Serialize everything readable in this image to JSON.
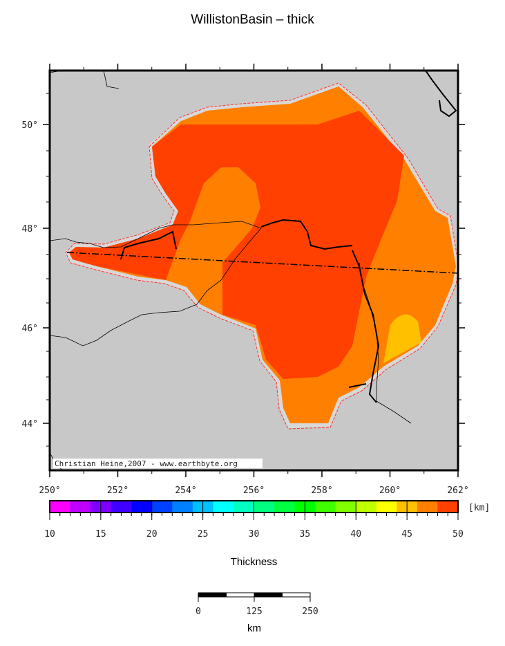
{
  "title": "WillistonBasin – thick",
  "map": {
    "credit": "Christian Heine,2007 - www.earthbyte.org",
    "lon_ticks": [
      "250°",
      "252°",
      "254°",
      "256°",
      "258°",
      "260°",
      "262°"
    ],
    "lat_ticks": [
      "50°",
      "48°",
      "46°",
      "44°"
    ],
    "land_color": "#c8c8c8",
    "outline_color": "#ff3030"
  },
  "colorbar": {
    "unit": "[km]",
    "label": "Thickness",
    "ticks": [
      "10",
      "15",
      "20",
      "25",
      "30",
      "35",
      "40",
      "45",
      "50"
    ],
    "colors": [
      "#ff00ff",
      "#bf00ff",
      "#8000ff",
      "#4000ff",
      "#0000ff",
      "#0040ff",
      "#0080ff",
      "#00c0ff",
      "#00ffff",
      "#00ffc0",
      "#00ff80",
      "#00ff40",
      "#00ff00",
      "#40ff00",
      "#80ff00",
      "#c0ff00",
      "#ffff00",
      "#ffc000",
      "#ff8000",
      "#ff4000"
    ]
  },
  "scalebar": {
    "ticks": [
      "0",
      "125",
      "250"
    ],
    "unit": "km"
  }
}
